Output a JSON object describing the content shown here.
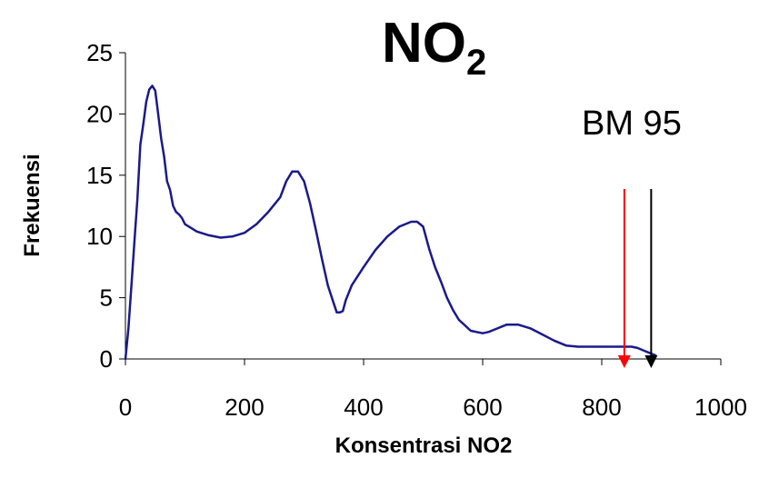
{
  "chart_data": {
    "type": "line",
    "title": "NO",
    "title_subscript": "2",
    "xlabel": "Konsentrasi NO2",
    "ylabel": "Frekuensi",
    "xlim": [
      0,
      1000
    ],
    "ylim": [
      0,
      25
    ],
    "x_ticks": [
      "0",
      "200",
      "400",
      "600",
      "800",
      "1000"
    ],
    "y_ticks": [
      "0",
      "5",
      "10",
      "15",
      "20",
      "25"
    ],
    "grid": false,
    "legend": "none",
    "series": [
      {
        "color": "#1a1a8c",
        "x": [
          0,
          5,
          10,
          15,
          20,
          25,
          30,
          35,
          40,
          45,
          50,
          55,
          60,
          65,
          70,
          75,
          80,
          85,
          90,
          95,
          100,
          120,
          140,
          160,
          180,
          200,
          220,
          240,
          260,
          270,
          280,
          290,
          300,
          310,
          320,
          330,
          340,
          350,
          355,
          360,
          365,
          370,
          380,
          400,
          420,
          440,
          460,
          480,
          490,
          500,
          510,
          520,
          530,
          540,
          550,
          560,
          580,
          600,
          610,
          620,
          640,
          660,
          680,
          700,
          720,
          740,
          760,
          780,
          800,
          820,
          840,
          850,
          860,
          870,
          880,
          890
        ],
        "y": [
          0,
          2.5,
          6,
          9.5,
          13,
          17.5,
          19.2,
          21,
          22,
          22.3,
          21.9,
          20,
          18,
          16.5,
          14.5,
          13.8,
          12.5,
          12,
          11.8,
          11.5,
          11,
          10.4,
          10.1,
          9.9,
          10,
          10.3,
          11,
          12,
          13.2,
          14.5,
          15.3,
          15.3,
          14.5,
          12.7,
          10.5,
          8.2,
          6,
          4.5,
          3.8,
          3.8,
          3.9,
          4.8,
          6,
          7.5,
          8.9,
          10,
          10.8,
          11.2,
          11.2,
          10.8,
          9,
          7.5,
          6.3,
          5,
          4,
          3.2,
          2.3,
          2.1,
          2.2,
          2.4,
          2.8,
          2.8,
          2.5,
          2,
          1.5,
          1.1,
          1,
          1,
          1,
          1,
          1,
          1,
          0.9,
          0.7,
          0.5,
          0.3
        ]
      }
    ],
    "annotations": [
      {
        "text": "BM 95"
      },
      {
        "type": "arrow",
        "x": 838,
        "color": "#ff0000"
      },
      {
        "type": "arrow",
        "x": 883,
        "color": "#000000"
      }
    ]
  }
}
